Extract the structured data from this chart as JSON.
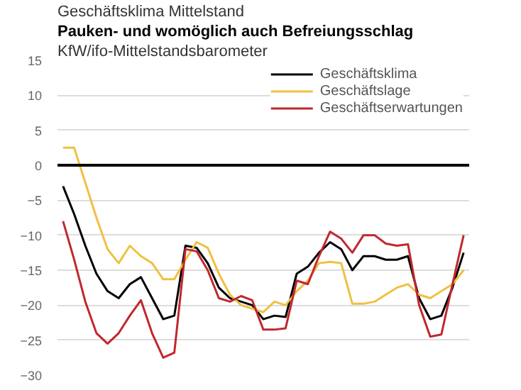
{
  "chart_data": {
    "type": "line",
    "title": "Pauken- und womöglich auch Befreiungsschlag",
    "subtitle": "KfW/ifo-Mittelstandsbarometer",
    "annotations": [
      "Geschäftsklima Mittelstand"
    ],
    "categories": [
      null,
      null,
      null,
      null,
      null,
      null,
      null,
      null,
      null,
      null,
      null,
      null,
      null,
      null,
      null,
      null,
      null,
      null,
      null,
      null,
      null,
      null,
      null,
      null,
      null,
      null,
      null,
      null,
      null,
      null,
      null,
      null,
      null,
      null,
      null,
      null,
      null
    ],
    "series": [
      {
        "name": "Geschäftsklima",
        "color": "#000000",
        "values": [
          -3,
          -7,
          -11.5,
          -15.5,
          -18,
          -19,
          -17,
          -16,
          -19,
          -22,
          -21.5,
          -11.5,
          -11.8,
          -14,
          -17.5,
          -19,
          -19.5,
          -20,
          -22,
          -21.5,
          -21.7,
          -15.5,
          -14.5,
          -12.5,
          -11,
          -12,
          -15,
          -13,
          -13,
          -13.5,
          -13.5,
          -13,
          -19,
          -22,
          -21.5,
          -17.5,
          -12.5
        ]
      },
      {
        "name": "Geschäftslage",
        "color": "#f0c040",
        "values": [
          2.5,
          2.5,
          -2.5,
          -7.5,
          -12,
          -14,
          -11.5,
          -13,
          -14,
          -16.3,
          -16.3,
          -13.5,
          -11,
          -11.8,
          -15.5,
          -18.5,
          -20,
          -20.5,
          -21,
          -19.5,
          -20,
          -18,
          -16.5,
          -14,
          -13.8,
          -14,
          -19.8,
          -19.8,
          -19.5,
          -18.5,
          -17.5,
          -17,
          -18.5,
          -19,
          -18,
          -17,
          -15
        ]
      },
      {
        "name": "Geschäftserwartungen",
        "color": "#c0282d",
        "values": [
          -8,
          -13.5,
          -19.5,
          -24,
          -25.5,
          -24,
          -21.5,
          -19.3,
          -24,
          -27.5,
          -26.8,
          -12,
          -12.3,
          -15,
          -19,
          -19.5,
          -18.7,
          -19.3,
          -23.5,
          -23.5,
          -23.3,
          -16.5,
          -17,
          -13,
          -9.5,
          -10.5,
          -12.5,
          -10,
          -10,
          -11.2,
          -11.5,
          -11.3,
          -20,
          -24.5,
          -24.2,
          -17,
          -10
        ]
      }
    ],
    "ylim": [
      -30,
      15
    ],
    "yticks": [
      -30,
      -25,
      -20,
      -15,
      -10,
      -5,
      0,
      5,
      10,
      15
    ],
    "grid": "y",
    "legend": "top right"
  }
}
